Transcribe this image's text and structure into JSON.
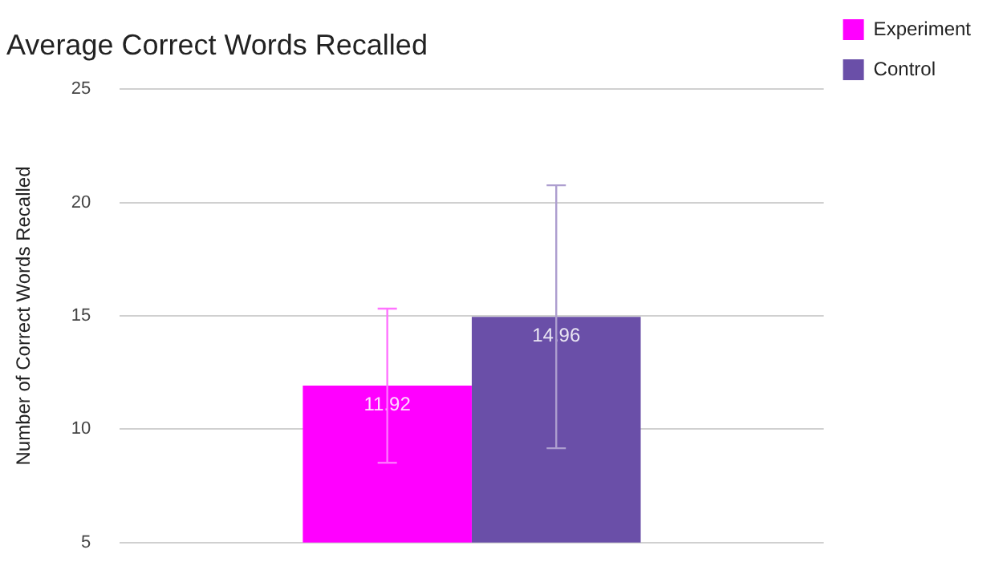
{
  "chart_data": {
    "type": "bar",
    "title": "Average Correct Words Recalled",
    "ylabel": "Number of Correct Words Recalled",
    "categories": [
      null
    ],
    "series": [
      {
        "name": "Experiment",
        "color": "#ff00ff",
        "values": [
          11.92
        ],
        "errors": [
          3.4
        ]
      },
      {
        "name": "Control",
        "color": "#6a4fa8",
        "values": [
          14.96
        ],
        "errors": [
          5.8
        ]
      }
    ],
    "ylim": [
      5,
      25
    ],
    "yticks": [
      5,
      10,
      15,
      20,
      25
    ],
    "grid": "y",
    "legend": "top right",
    "data_labels": true
  }
}
